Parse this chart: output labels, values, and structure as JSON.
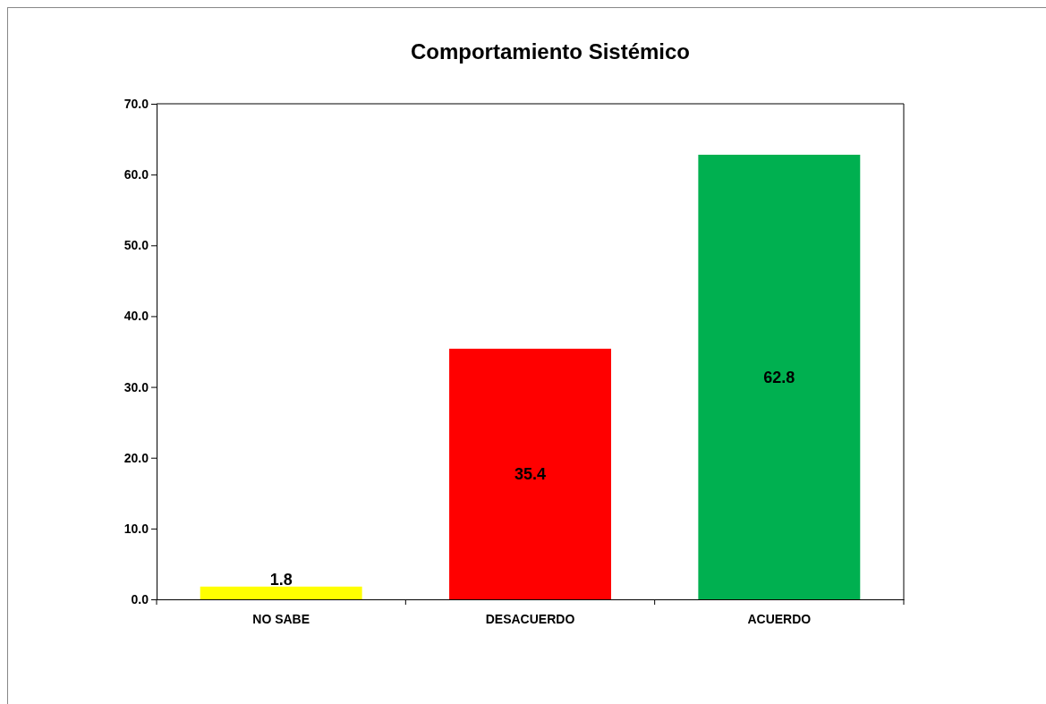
{
  "chart_data": {
    "type": "bar",
    "title": "Comportamiento Sistémico",
    "categories": [
      "NO SABE",
      "DESACUERDO",
      "ACUERDO"
    ],
    "values": [
      1.8,
      35.4,
      62.8
    ],
    "colors": [
      "#ffff00",
      "#ff0000",
      "#00b050"
    ],
    "ylim": [
      0,
      70
    ],
    "yticks": [
      {
        "value": 0,
        "label": "0.0"
      },
      {
        "value": 10,
        "label": "10.0"
      },
      {
        "value": 20,
        "label": "20.0"
      },
      {
        "value": 30,
        "label": "30.0"
      },
      {
        "value": 40,
        "label": "40.0"
      },
      {
        "value": 50,
        "label": "50.0"
      },
      {
        "value": 60,
        "label": "60.0"
      },
      {
        "value": 70,
        "label": "70.0"
      }
    ],
    "grid": false,
    "data_labels": true
  }
}
